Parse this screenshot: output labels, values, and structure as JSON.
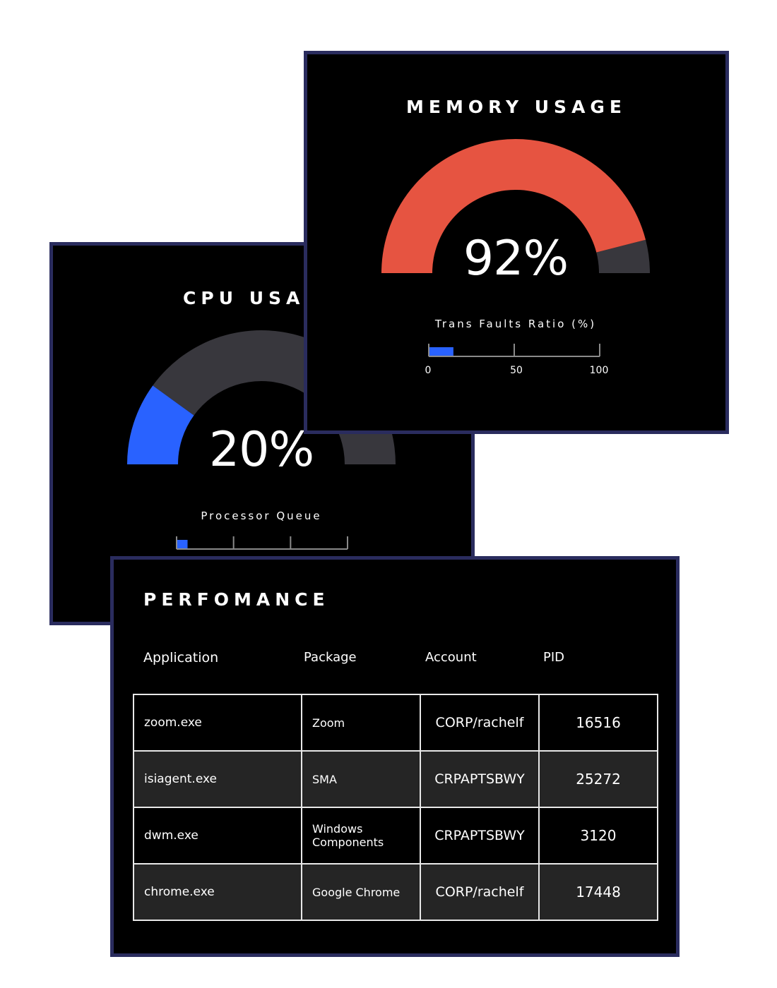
{
  "cpu": {
    "title": "CPU USAGE",
    "value_text": "20%",
    "percent": 20,
    "bar_label": "Processor Queue",
    "bar_fill": 0.06
  },
  "memory": {
    "title": "MEMORY USAGE",
    "value_text": "92%",
    "percent": 92,
    "bar_label": "Trans Faults Ratio (%)",
    "bar_fill": 0.14,
    "bar_ticks": [
      "0",
      "50",
      "100"
    ]
  },
  "performance": {
    "title": "PERFOMANCE",
    "columns": [
      "Application",
      "Package",
      "Account",
      "PID"
    ],
    "rows": [
      {
        "application": "zoom.exe",
        "package": "Zoom",
        "account": "CORP/rachelf",
        "pid": "16516"
      },
      {
        "application": "isiagent.exe",
        "package": "SMA",
        "account": "CRPAPTSBWY",
        "pid": "25272"
      },
      {
        "application": "dwm.exe",
        "package": "Windows Components",
        "account": "CRPAPTSBWY",
        "pid": "3120"
      },
      {
        "application": "chrome.exe",
        "package": "Google Chrome",
        "account": "CORP/rachelf",
        "pid": "17448"
      }
    ]
  },
  "colors": {
    "cpu_fill": "#2962ff",
    "memory_fill": "#e65441",
    "gauge_track": "#38373d",
    "card_border": "#2a2c5e",
    "bar_fill": "#2962ff",
    "bar_line": "#8a8a8a"
  }
}
